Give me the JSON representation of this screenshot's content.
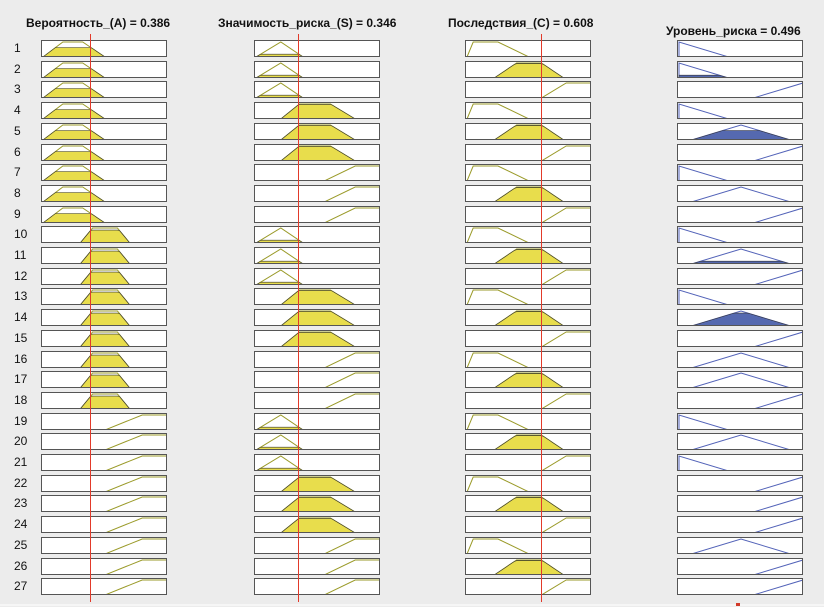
{
  "columns": [
    {
      "title": "Вероятность_(A) = 0.386",
      "kind": "input",
      "fill": "#e8dd4c",
      "stroke": "#9a9a28",
      "value": 0.386,
      "sets": [
        [
          0,
          0.16,
          0.32,
          0.5
        ],
        [
          0.3,
          0.4,
          0.6,
          0.7
        ],
        [
          0.5,
          0.8,
          1,
          1
        ]
      ]
    },
    {
      "title": "Значимость_риска_(S) = 0.346",
      "kind": "input",
      "fill": "#e8dd4c",
      "stroke": "#9a9a28",
      "value": 0.346,
      "sets": [
        [
          0,
          0.2,
          0.2,
          0.38
        ],
        [
          0.2,
          0.35,
          0.6,
          0.8
        ],
        [
          0.55,
          0.8,
          1,
          1
        ]
      ]
    },
    {
      "title": "Последствия_(C) = 0.608",
      "kind": "input",
      "fill": "#e8dd4c",
      "stroke": "#9a9a28",
      "value": 0.608,
      "sets": [
        [
          0,
          0.05,
          0.25,
          0.5
        ],
        [
          0.22,
          0.4,
          0.6,
          0.78
        ],
        [
          0.6,
          0.8,
          1,
          1
        ]
      ]
    },
    {
      "title": "Уровень_риска = 0.496",
      "kind": "output",
      "fill": "#5569b0",
      "stroke": "#5262b8",
      "value": 0.496,
      "sets": [
        [
          0,
          0,
          0.4
        ],
        [
          0.1,
          0.5,
          0.9
        ],
        [
          0.6,
          1,
          1
        ]
      ]
    }
  ],
  "rules": [
    {
      "n": "1",
      "a": 1,
      "s": 1,
      "c": 1,
      "out": 1
    },
    {
      "n": "2",
      "a": 1,
      "s": 1,
      "c": 2,
      "out": 1
    },
    {
      "n": "3",
      "a": 1,
      "s": 1,
      "c": 3,
      "out": 3
    },
    {
      "n": "4",
      "a": 1,
      "s": 2,
      "c": 1,
      "out": 1
    },
    {
      "n": "5",
      "a": 1,
      "s": 2,
      "c": 2,
      "out": 2
    },
    {
      "n": "6",
      "a": 1,
      "s": 2,
      "c": 3,
      "out": 3
    },
    {
      "n": "7",
      "a": 1,
      "s": 3,
      "c": 1,
      "out": 1
    },
    {
      "n": "8",
      "a": 1,
      "s": 3,
      "c": 2,
      "out": 2
    },
    {
      "n": "9",
      "a": 1,
      "s": 3,
      "c": 3,
      "out": 3
    },
    {
      "n": "10",
      "a": 2,
      "s": 1,
      "c": 1,
      "out": 1
    },
    {
      "n": "11",
      "a": 2,
      "s": 1,
      "c": 2,
      "out": 2
    },
    {
      "n": "12",
      "a": 2,
      "s": 1,
      "c": 3,
      "out": 3
    },
    {
      "n": "13",
      "a": 2,
      "s": 2,
      "c": 1,
      "out": 1
    },
    {
      "n": "14",
      "a": 2,
      "s": 2,
      "c": 2,
      "out": 2
    },
    {
      "n": "15",
      "a": 2,
      "s": 2,
      "c": 3,
      "out": 3
    },
    {
      "n": "16",
      "a": 2,
      "s": 3,
      "c": 1,
      "out": 2
    },
    {
      "n": "17",
      "a": 2,
      "s": 3,
      "c": 2,
      "out": 2
    },
    {
      "n": "18",
      "a": 2,
      "s": 3,
      "c": 3,
      "out": 3
    },
    {
      "n": "19",
      "a": 3,
      "s": 1,
      "c": 1,
      "out": 1
    },
    {
      "n": "20",
      "a": 3,
      "s": 1,
      "c": 2,
      "out": 2
    },
    {
      "n": "21",
      "a": 3,
      "s": 1,
      "c": 3,
      "out": 1
    },
    {
      "n": "22",
      "a": 3,
      "s": 2,
      "c": 1,
      "out": 3
    },
    {
      "n": "23",
      "a": 3,
      "s": 2,
      "c": 2,
      "out": 3
    },
    {
      "n": "24",
      "a": 3,
      "s": 2,
      "c": 3,
      "out": 3
    },
    {
      "n": "25",
      "a": 3,
      "s": 3,
      "c": 1,
      "out": 2
    },
    {
      "n": "26",
      "a": 3,
      "s": 3,
      "c": 2,
      "out": 3
    },
    {
      "n": "27",
      "a": 3,
      "s": 3,
      "c": 3,
      "out": 3
    }
  ],
  "colors": {
    "background": "#ececec",
    "cell_bg": "#ffffff",
    "cell_border": "#555555",
    "input_line": "#e23a2a"
  }
}
